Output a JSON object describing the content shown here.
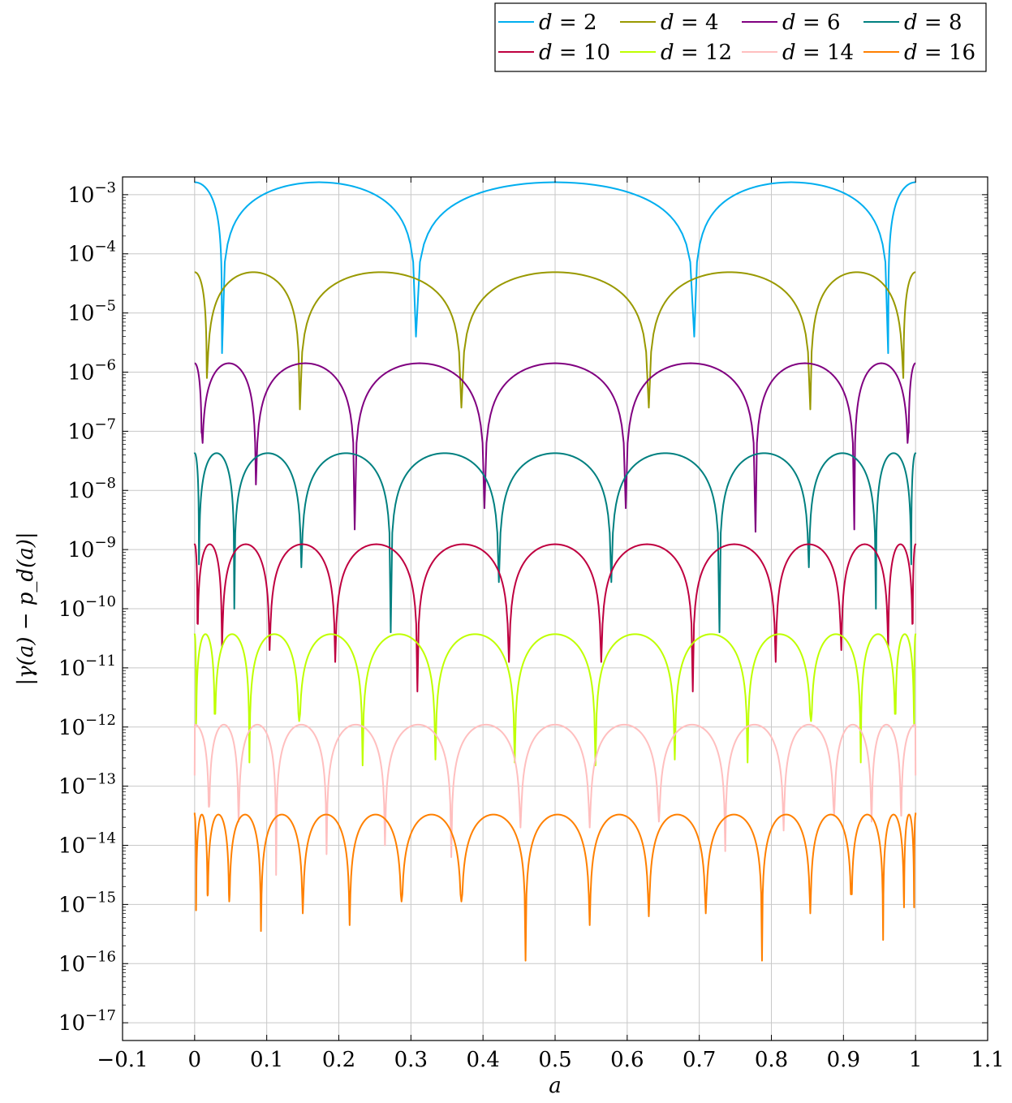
{
  "chart_data": {
    "type": "line",
    "title": "",
    "xlabel": "a",
    "ylabel": "|γ(a) − p_d(a)|",
    "xlim": [
      -0.1,
      1.1
    ],
    "ylim_log10": [
      -17.3,
      -2.7
    ],
    "yscale": "log",
    "grid": true,
    "legend_position": "top-right",
    "legend_columns": 4,
    "x_ticks": [
      "−0.1",
      "0",
      "0.1",
      "0.2",
      "0.3",
      "0.4",
      "0.5",
      "0.6",
      "0.7",
      "0.8",
      "0.9",
      "1",
      "1.1"
    ],
    "x_tick_values": [
      -0.1,
      0,
      0.1,
      0.2,
      0.3,
      0.4,
      0.5,
      0.6,
      0.7,
      0.8,
      0.9,
      1,
      1.1
    ],
    "y_ticks": [
      {
        "base": "10",
        "exp": "−3"
      },
      {
        "base": "10",
        "exp": "−4"
      },
      {
        "base": "10",
        "exp": "−5"
      },
      {
        "base": "10",
        "exp": "−6"
      },
      {
        "base": "10",
        "exp": "−7"
      },
      {
        "base": "10",
        "exp": "−8"
      },
      {
        "base": "10",
        "exp": "−9"
      },
      {
        "base": "10",
        "exp": "−10"
      },
      {
        "base": "10",
        "exp": "−11"
      },
      {
        "base": "10",
        "exp": "−12"
      },
      {
        "base": "10",
        "exp": "−13"
      },
      {
        "base": "10",
        "exp": "−14"
      },
      {
        "base": "10",
        "exp": "−15"
      },
      {
        "base": "10",
        "exp": "−16"
      },
      {
        "base": "10",
        "exp": "−17"
      }
    ],
    "y_tick_exponents": [
      -3,
      -4,
      -5,
      -6,
      -7,
      -8,
      -9,
      -10,
      -11,
      -12,
      -13,
      -14,
      -15,
      -16,
      -17
    ],
    "series": [
      {
        "name": "d = 2",
        "label_var": "d",
        "label_val": "2",
        "color": "#00aeef",
        "peak_log10": -2.79,
        "endpoint_log10": -2.79,
        "zeros": [
          0.038,
          0.307,
          0.693,
          0.962
        ],
        "zero_depths": [
          -5.68,
          -5.4,
          -5.4,
          -5.68
        ]
      },
      {
        "name": "d = 4",
        "label_var": "d",
        "label_val": "4",
        "color": "#999900",
        "peak_log10": -4.31,
        "endpoint_log10": -4.31,
        "zeros": [
          0.017,
          0.146,
          0.37,
          0.63,
          0.854,
          0.983
        ],
        "zero_depths": [
          -6.1,
          -6.63,
          -6.6,
          -6.6,
          -6.63,
          -6.1
        ]
      },
      {
        "name": "d = 6",
        "label_var": "d",
        "label_val": "6",
        "color": "#800080",
        "peak_log10": -5.85,
        "endpoint_log10": -5.85,
        "zeros": [
          0.01,
          0.085,
          0.222,
          0.402,
          0.598,
          0.778,
          0.915,
          0.99
        ],
        "zero_depths": [
          -7.03,
          -7.9,
          -8.66,
          -8.3,
          -8.3,
          -8.7,
          -8.66,
          -7.03
        ]
      },
      {
        "name": "d = 8",
        "label_var": "d",
        "label_val": "8",
        "color": "#008080",
        "peak_log10": -7.37,
        "endpoint_log10": -7.36,
        "zeros": [
          0.006,
          0.055,
          0.148,
          0.272,
          0.422,
          0.578,
          0.728,
          0.852,
          0.945,
          0.994
        ],
        "zero_depths": [
          -9.25,
          -10.0,
          -9.3,
          -10.4,
          -9.55,
          -9.55,
          -10.4,
          -9.3,
          -10.0,
          -9.25
        ]
      },
      {
        "name": "d = 10",
        "label_var": "d",
        "label_val": "10",
        "color": "#bf0040",
        "peak_log10": -8.91,
        "endpoint_log10": -8.9,
        "zeros": [
          0.004,
          0.038,
          0.104,
          0.195,
          0.309,
          0.436,
          0.564,
          0.691,
          0.806,
          0.897,
          0.962,
          0.996
        ],
        "zero_depths": [
          -10.25,
          -10.65,
          -10.7,
          -10.9,
          -11.4,
          -10.9,
          -10.9,
          -11.4,
          -10.9,
          -10.7,
          -10.65,
          -10.25
        ]
      },
      {
        "name": "d = 12",
        "label_var": "d",
        "label_val": "12",
        "color": "#bfff00",
        "peak_log10": -10.43,
        "endpoint_log10": -10.42,
        "zeros": [
          0.002,
          0.028,
          0.076,
          0.145,
          0.233,
          0.334,
          0.444,
          0.556,
          0.666,
          0.767,
          0.855,
          0.924,
          0.972,
          0.998
        ],
        "zero_depths": [
          -11.95,
          -11.7,
          -12.6,
          -11.9,
          -12.65,
          -12.55,
          -12.6,
          -12.65,
          -12.55,
          -12.6,
          -11.9,
          -12.6,
          -11.7,
          -11.95
        ]
      },
      {
        "name": "d = 14",
        "label_var": "d",
        "label_val": "14",
        "color": "#ffbfbf",
        "peak_log10": -11.96,
        "endpoint_log10": -12.82,
        "zeros": [
          0.02,
          0.061,
          0.113,
          0.183,
          0.264,
          0.356,
          0.452,
          0.548,
          0.644,
          0.736,
          0.817,
          0.887,
          0.939,
          0.98
        ],
        "zero_depths": [
          -13.35,
          -13.6,
          -14.5,
          -14.15,
          -14.0,
          -14.2,
          -13.7,
          -13.7,
          -13.6,
          -14.1,
          -13.75,
          -13.5,
          -13.6,
          -13.5
        ]
      },
      {
        "name": "d = 16",
        "label_var": "d",
        "label_val": "16",
        "color": "#ff8000",
        "peak_log10": -13.48,
        "endpoint_log10": -13.45,
        "zeros": [
          0.002,
          0.018,
          0.048,
          0.092,
          0.15,
          0.215,
          0.287,
          0.37,
          0.459,
          0.548,
          0.63,
          0.709,
          0.787,
          0.854,
          0.911,
          0.955,
          0.984,
          0.998
        ],
        "zero_depths": [
          -15.1,
          -14.85,
          -14.95,
          -15.45,
          -15.15,
          -15.35,
          -14.95,
          -14.95,
          -15.95,
          -15.35,
          -15.2,
          -15.15,
          -15.95,
          -15.15,
          -14.65,
          -15.6,
          -15.05,
          -15.05
        ]
      }
    ]
  }
}
